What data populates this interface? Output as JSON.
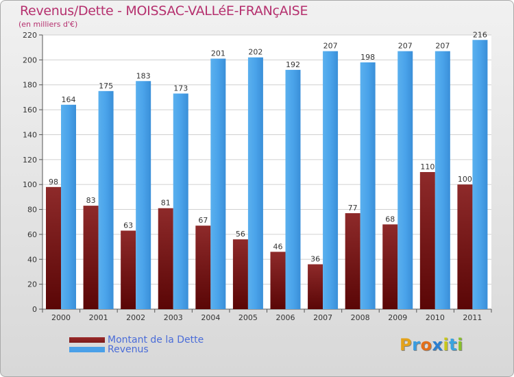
{
  "title": "Revenus/Dette - MOISSAC-VALLéE-FRANçAISE",
  "subtitle": "(en milliers d'€)",
  "colors": {
    "dette": "#7a1a1a",
    "revenus": "#4aa0e8",
    "title": "#b5306e",
    "legend_text": "#4a6cd8"
  },
  "legend": {
    "dette_label": "Montant de la Dette",
    "revenus_label": "Revenus"
  },
  "logo": {
    "letters": [
      "P",
      "r",
      "o",
      "x",
      "i",
      "t",
      "i"
    ],
    "colors": [
      "#e3a21a",
      "#3a9de0",
      "#e36f1a",
      "#2b7fd0",
      "#c8c81a",
      "#3aa3e0",
      "#88c02a"
    ]
  },
  "chart_data": {
    "type": "bar",
    "categories": [
      "2000",
      "2001",
      "2002",
      "2003",
      "2004",
      "2005",
      "2006",
      "2007",
      "2008",
      "2009",
      "2010",
      "2011"
    ],
    "series": [
      {
        "name": "Montant de la Dette",
        "values": [
          98,
          83,
          63,
          81,
          67,
          56,
          46,
          36,
          77,
          68,
          110,
          100
        ]
      },
      {
        "name": "Revenus",
        "values": [
          164,
          175,
          183,
          173,
          201,
          202,
          192,
          207,
          198,
          207,
          207,
          216
        ]
      }
    ],
    "ylim": [
      0,
      220
    ],
    "yticks": [
      0,
      20,
      40,
      60,
      80,
      100,
      120,
      140,
      160,
      180,
      200,
      220
    ],
    "grid": true,
    "legend_position": "bottom-left"
  }
}
